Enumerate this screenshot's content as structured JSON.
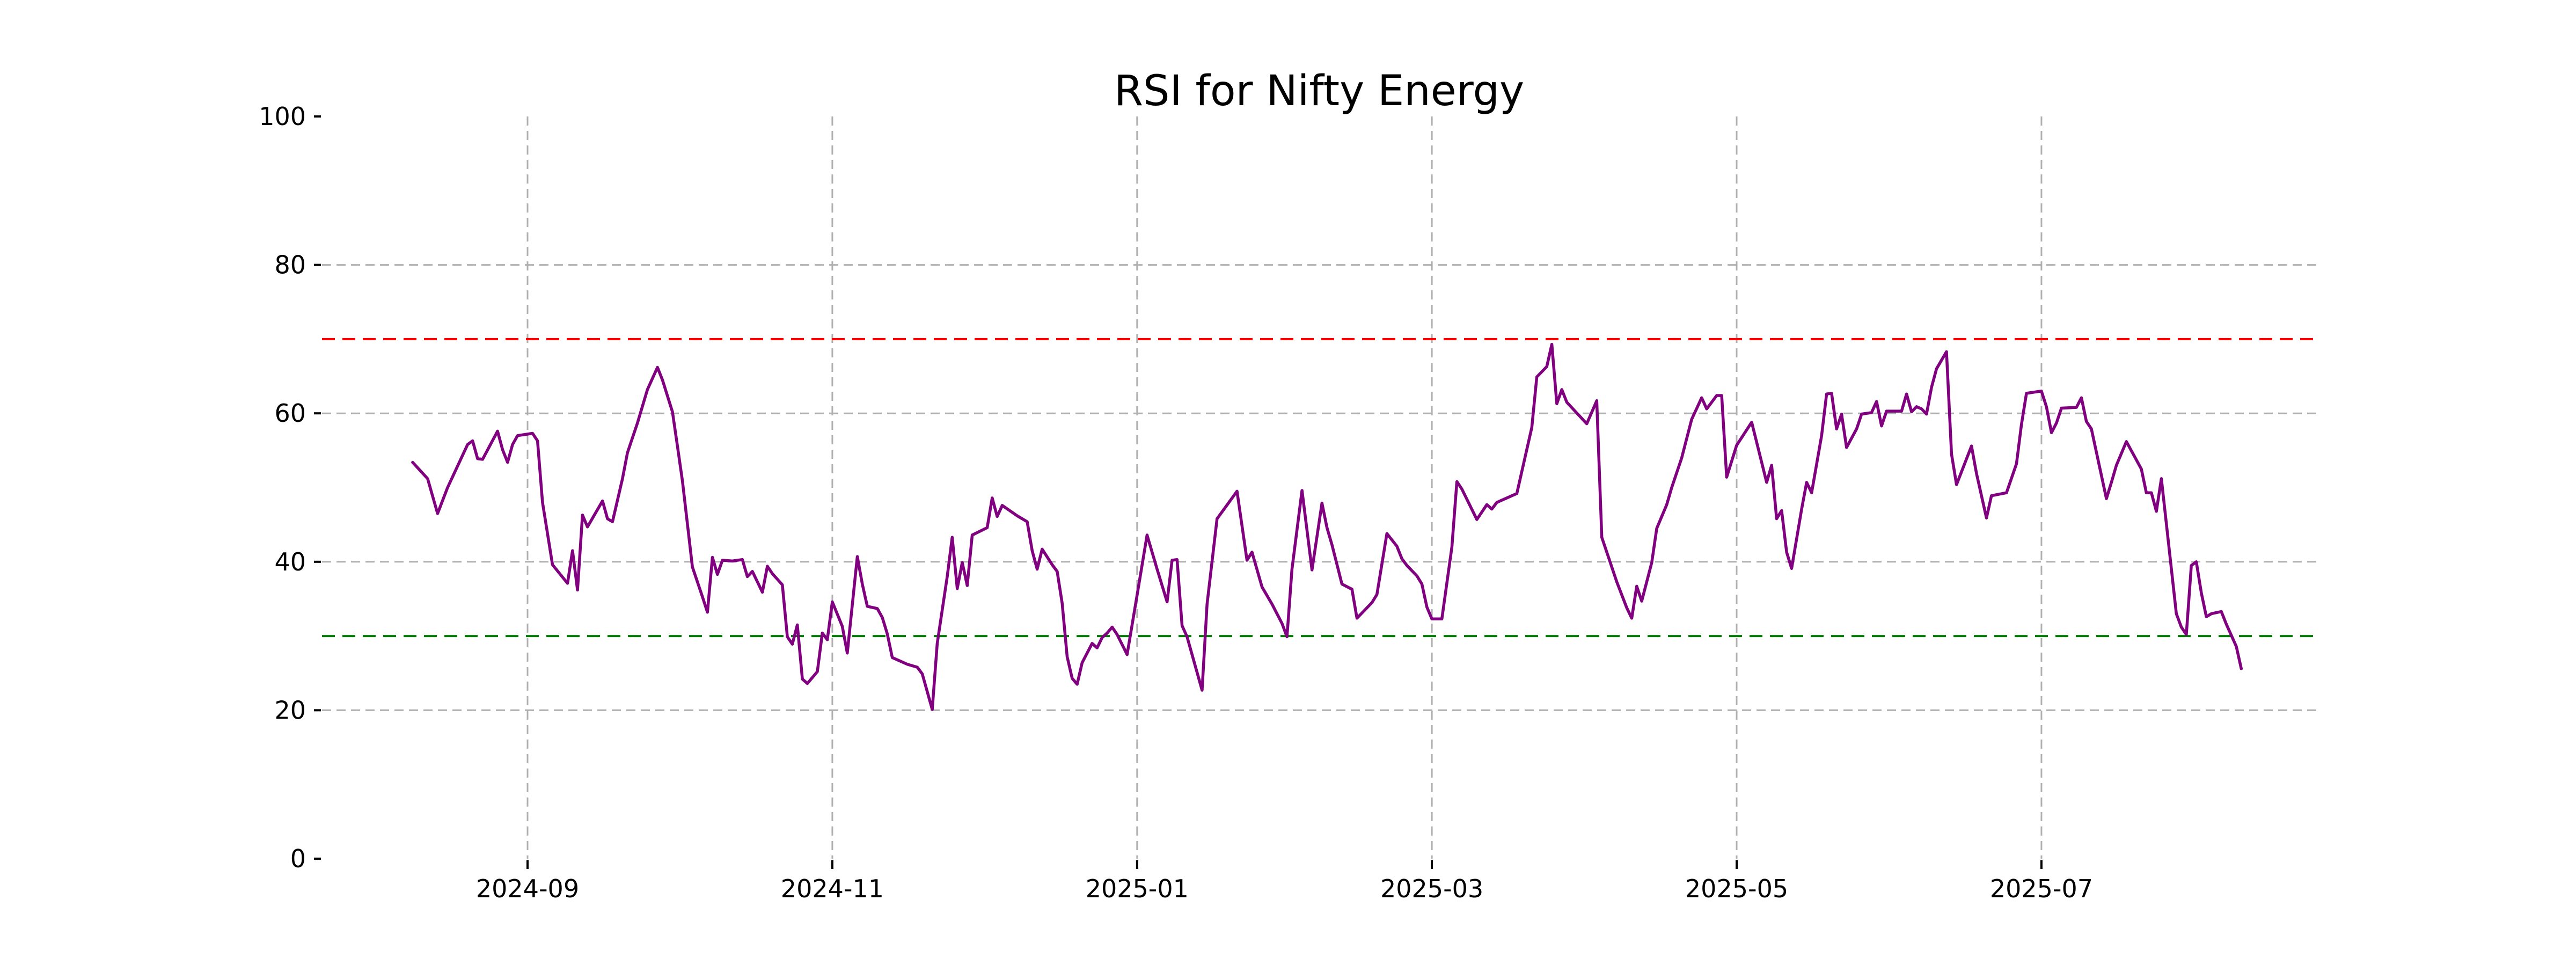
{
  "title": "RSI for Nifty Energy",
  "colors": {
    "line": "#800080",
    "overbought": "#ff0000",
    "oversold": "#008000",
    "grid": "#b0b0b0",
    "tick": "#000000",
    "background": "#ffffff"
  },
  "chart_data": {
    "type": "line",
    "title": "RSI for Nifty Energy",
    "xlabel": "",
    "ylabel": "",
    "ylim": [
      0,
      100
    ],
    "grid": true,
    "legend": "none",
    "y_ticks": [
      0,
      20,
      40,
      60,
      80,
      100
    ],
    "y_gridlines": [
      20,
      40,
      60,
      80
    ],
    "x_ticks": [
      {
        "date": "2024-09-01",
        "label": "2024-09"
      },
      {
        "date": "2024-11-01",
        "label": "2024-11"
      },
      {
        "date": "2025-01-01",
        "label": "2025-01"
      },
      {
        "date": "2025-03-01",
        "label": "2025-03"
      },
      {
        "date": "2025-05-01",
        "label": "2025-05"
      },
      {
        "date": "2025-07-01",
        "label": "2025-07"
      }
    ],
    "reference_lines": [
      {
        "name": "overbought",
        "value": 70,
        "color": "#ff0000",
        "style": "dashed"
      },
      {
        "name": "oversold",
        "value": 30,
        "color": "#008000",
        "style": "dashed"
      }
    ],
    "series": [
      {
        "name": "RSI",
        "color": "#800080",
        "points": [
          [
            "2024-08-09",
            53.4
          ],
          [
            "2024-08-12",
            51.2
          ],
          [
            "2024-08-14",
            46.5
          ],
          [
            "2024-08-16",
            50.0
          ],
          [
            "2024-08-20",
            55.8
          ],
          [
            "2024-08-21",
            56.3
          ],
          [
            "2024-08-22",
            53.9
          ],
          [
            "2024-08-23",
            53.8
          ],
          [
            "2024-08-26",
            57.6
          ],
          [
            "2024-08-27",
            55.1
          ],
          [
            "2024-08-28",
            53.4
          ],
          [
            "2024-08-29",
            55.8
          ],
          [
            "2024-08-30",
            57.0
          ],
          [
            "2024-09-02",
            57.3
          ],
          [
            "2024-09-03",
            56.3
          ],
          [
            "2024-09-04",
            48.0
          ],
          [
            "2024-09-06",
            39.6
          ],
          [
            "2024-09-09",
            37.1
          ],
          [
            "2024-09-10",
            41.5
          ],
          [
            "2024-09-11",
            36.2
          ],
          [
            "2024-09-12",
            46.3
          ],
          [
            "2024-09-13",
            44.7
          ],
          [
            "2024-09-16",
            48.2
          ],
          [
            "2024-09-17",
            45.8
          ],
          [
            "2024-09-18",
            45.4
          ],
          [
            "2024-09-20",
            51.2
          ],
          [
            "2024-09-21",
            54.7
          ],
          [
            "2024-09-23",
            58.7
          ],
          [
            "2024-09-25",
            63.2
          ],
          [
            "2024-09-27",
            66.2
          ],
          [
            "2024-09-28",
            64.5
          ],
          [
            "2024-09-30",
            60.2
          ],
          [
            "2024-10-01",
            55.6
          ],
          [
            "2024-10-02",
            50.9
          ],
          [
            "2024-10-03",
            45.1
          ],
          [
            "2024-10-04",
            39.3
          ],
          [
            "2024-10-06",
            35.3
          ],
          [
            "2024-10-07",
            33.2
          ],
          [
            "2024-10-08",
            40.6
          ],
          [
            "2024-10-09",
            38.3
          ],
          [
            "2024-10-10",
            40.2
          ],
          [
            "2024-10-12",
            40.1
          ],
          [
            "2024-10-14",
            40.3
          ],
          [
            "2024-10-15",
            38.0
          ],
          [
            "2024-10-16",
            38.7
          ],
          [
            "2024-10-18",
            35.9
          ],
          [
            "2024-10-19",
            39.4
          ],
          [
            "2024-10-20",
            38.4
          ],
          [
            "2024-10-22",
            36.9
          ],
          [
            "2024-10-23",
            29.9
          ],
          [
            "2024-10-24",
            28.9
          ],
          [
            "2024-10-25",
            31.5
          ],
          [
            "2024-10-26",
            24.2
          ],
          [
            "2024-10-27",
            23.6
          ],
          [
            "2024-10-29",
            25.2
          ],
          [
            "2024-10-30",
            30.4
          ],
          [
            "2024-10-31",
            29.5
          ],
          [
            "2024-11-01",
            34.6
          ],
          [
            "2024-11-03",
            31.3
          ],
          [
            "2024-11-04",
            27.7
          ],
          [
            "2024-11-06",
            40.7
          ],
          [
            "2024-11-07",
            37.0
          ],
          [
            "2024-11-08",
            34.0
          ],
          [
            "2024-11-10",
            33.7
          ],
          [
            "2024-11-11",
            32.5
          ],
          [
            "2024-11-12",
            30.3
          ],
          [
            "2024-11-13",
            27.1
          ],
          [
            "2024-11-16",
            26.2
          ],
          [
            "2024-11-18",
            25.8
          ],
          [
            "2024-11-19",
            24.9
          ],
          [
            "2024-11-21",
            20.1
          ],
          [
            "2024-11-22",
            29.0
          ],
          [
            "2024-11-24",
            38.0
          ],
          [
            "2024-11-25",
            43.3
          ],
          [
            "2024-11-26",
            36.4
          ],
          [
            "2024-11-27",
            39.9
          ],
          [
            "2024-11-28",
            36.8
          ],
          [
            "2024-11-29",
            43.6
          ],
          [
            "2024-12-02",
            44.6
          ],
          [
            "2024-12-03",
            48.6
          ],
          [
            "2024-12-04",
            46.1
          ],
          [
            "2024-12-05",
            47.6
          ],
          [
            "2024-12-08",
            46.2
          ],
          [
            "2024-12-10",
            45.4
          ],
          [
            "2024-12-11",
            41.5
          ],
          [
            "2024-12-12",
            39.0
          ],
          [
            "2024-12-13",
            41.7
          ],
          [
            "2024-12-15",
            39.6
          ],
          [
            "2024-12-16",
            38.7
          ],
          [
            "2024-12-17",
            34.4
          ],
          [
            "2024-12-18",
            27.2
          ],
          [
            "2024-12-19",
            24.3
          ],
          [
            "2024-12-20",
            23.5
          ],
          [
            "2024-12-21",
            26.4
          ],
          [
            "2024-12-23",
            29.0
          ],
          [
            "2024-12-24",
            28.4
          ],
          [
            "2024-12-25",
            29.8
          ],
          [
            "2024-12-26",
            30.4
          ],
          [
            "2024-12-27",
            31.2
          ],
          [
            "2024-12-28",
            30.2
          ],
          [
            "2024-12-30",
            27.5
          ],
          [
            "2025-01-01",
            35.5
          ],
          [
            "2025-01-03",
            43.6
          ],
          [
            "2025-01-05",
            39.0
          ],
          [
            "2025-01-07",
            34.6
          ],
          [
            "2025-01-08",
            40.2
          ],
          [
            "2025-01-09",
            40.3
          ],
          [
            "2025-01-10",
            31.4
          ],
          [
            "2025-01-11",
            29.9
          ],
          [
            "2025-01-14",
            22.7
          ],
          [
            "2025-01-15",
            34.3
          ],
          [
            "2025-01-17",
            45.8
          ],
          [
            "2025-01-21",
            49.5
          ],
          [
            "2025-01-23",
            40.2
          ],
          [
            "2025-01-24",
            41.3
          ],
          [
            "2025-01-26",
            36.6
          ],
          [
            "2025-01-28",
            34.3
          ],
          [
            "2025-01-30",
            31.7
          ],
          [
            "2025-01-31",
            29.9
          ],
          [
            "2025-02-01",
            39.0
          ],
          [
            "2025-02-03",
            49.6
          ],
          [
            "2025-02-05",
            38.9
          ],
          [
            "2025-02-07",
            47.9
          ],
          [
            "2025-02-08",
            44.6
          ],
          [
            "2025-02-09",
            42.3
          ],
          [
            "2025-02-11",
            37.0
          ],
          [
            "2025-02-13",
            36.3
          ],
          [
            "2025-02-14",
            32.4
          ],
          [
            "2025-02-17",
            34.5
          ],
          [
            "2025-02-18",
            35.6
          ],
          [
            "2025-02-20",
            43.8
          ],
          [
            "2025-02-22",
            42.1
          ],
          [
            "2025-02-23",
            40.4
          ],
          [
            "2025-02-24",
            39.5
          ],
          [
            "2025-02-26",
            38.1
          ],
          [
            "2025-02-27",
            37.0
          ],
          [
            "2025-02-28",
            33.9
          ],
          [
            "2025-03-01",
            32.3
          ],
          [
            "2025-03-03",
            32.3
          ],
          [
            "2025-03-05",
            42.0
          ],
          [
            "2025-03-06",
            50.8
          ],
          [
            "2025-03-07",
            49.8
          ],
          [
            "2025-03-10",
            45.7
          ],
          [
            "2025-03-12",
            47.7
          ],
          [
            "2025-03-13",
            47.1
          ],
          [
            "2025-03-14",
            48.0
          ],
          [
            "2025-03-17",
            48.9
          ],
          [
            "2025-03-18",
            49.2
          ],
          [
            "2025-03-21",
            58.1
          ],
          [
            "2025-03-22",
            64.9
          ],
          [
            "2025-03-24",
            66.3
          ],
          [
            "2025-03-25",
            69.3
          ],
          [
            "2025-03-26",
            61.3
          ],
          [
            "2025-03-27",
            63.2
          ],
          [
            "2025-03-28",
            61.5
          ],
          [
            "2025-04-01",
            58.6
          ],
          [
            "2025-04-03",
            61.7
          ],
          [
            "2025-04-04",
            43.3
          ],
          [
            "2025-04-07",
            37.3
          ],
          [
            "2025-04-09",
            33.8
          ],
          [
            "2025-04-10",
            32.4
          ],
          [
            "2025-04-11",
            36.7
          ],
          [
            "2025-04-12",
            34.7
          ],
          [
            "2025-04-14",
            39.9
          ],
          [
            "2025-04-15",
            44.5
          ],
          [
            "2025-04-17",
            47.7
          ],
          [
            "2025-04-18",
            50.0
          ],
          [
            "2025-04-20",
            54.0
          ],
          [
            "2025-04-21",
            56.6
          ],
          [
            "2025-04-22",
            59.2
          ],
          [
            "2025-04-24",
            62.1
          ],
          [
            "2025-04-25",
            60.6
          ],
          [
            "2025-04-27",
            62.4
          ],
          [
            "2025-04-28",
            62.4
          ],
          [
            "2025-04-29",
            51.4
          ],
          [
            "2025-05-01",
            55.7
          ],
          [
            "2025-05-04",
            58.8
          ],
          [
            "2025-05-07",
            50.7
          ],
          [
            "2025-05-08",
            53.0
          ],
          [
            "2025-05-09",
            45.8
          ],
          [
            "2025-05-10",
            46.9
          ],
          [
            "2025-05-11",
            41.3
          ],
          [
            "2025-05-12",
            39.1
          ],
          [
            "2025-05-14",
            47.1
          ],
          [
            "2025-05-15",
            50.7
          ],
          [
            "2025-05-16",
            49.3
          ],
          [
            "2025-05-18",
            57.0
          ],
          [
            "2025-05-19",
            62.6
          ],
          [
            "2025-05-20",
            62.7
          ],
          [
            "2025-05-21",
            57.9
          ],
          [
            "2025-05-22",
            59.9
          ],
          [
            "2025-05-23",
            55.4
          ],
          [
            "2025-05-25",
            57.9
          ],
          [
            "2025-05-26",
            59.9
          ],
          [
            "2025-05-28",
            60.1
          ],
          [
            "2025-05-29",
            61.6
          ],
          [
            "2025-05-30",
            58.3
          ],
          [
            "2025-05-31",
            60.3
          ],
          [
            "2025-06-03",
            60.3
          ],
          [
            "2025-06-04",
            62.6
          ],
          [
            "2025-06-05",
            60.2
          ],
          [
            "2025-06-06",
            60.9
          ],
          [
            "2025-06-07",
            60.6
          ],
          [
            "2025-06-08",
            59.9
          ],
          [
            "2025-06-09",
            63.5
          ],
          [
            "2025-06-10",
            66.0
          ],
          [
            "2025-06-12",
            68.3
          ],
          [
            "2025-06-13",
            54.5
          ],
          [
            "2025-06-14",
            50.4
          ],
          [
            "2025-06-17",
            55.6
          ],
          [
            "2025-06-18",
            51.9
          ],
          [
            "2025-06-20",
            45.9
          ],
          [
            "2025-06-21",
            48.9
          ],
          [
            "2025-06-24",
            49.3
          ],
          [
            "2025-06-26",
            53.2
          ],
          [
            "2025-06-27",
            58.5
          ],
          [
            "2025-06-28",
            62.7
          ],
          [
            "2025-07-01",
            63.0
          ],
          [
            "2025-07-02",
            60.9
          ],
          [
            "2025-07-03",
            57.4
          ],
          [
            "2025-07-04",
            58.7
          ],
          [
            "2025-07-05",
            60.7
          ],
          [
            "2025-07-08",
            60.8
          ],
          [
            "2025-07-09",
            62.1
          ],
          [
            "2025-07-10",
            58.9
          ],
          [
            "2025-07-11",
            57.9
          ],
          [
            "2025-07-14",
            48.5
          ],
          [
            "2025-07-15",
            50.7
          ],
          [
            "2025-07-16",
            53.0
          ],
          [
            "2025-07-18",
            56.2
          ],
          [
            "2025-07-21",
            52.5
          ],
          [
            "2025-07-22",
            49.3
          ],
          [
            "2025-07-23",
            49.3
          ],
          [
            "2025-07-24",
            46.8
          ],
          [
            "2025-07-25",
            51.2
          ],
          [
            "2025-07-28",
            33.0
          ],
          [
            "2025-07-29",
            31.2
          ],
          [
            "2025-07-30",
            30.2
          ],
          [
            "2025-07-31",
            39.5
          ],
          [
            "2025-08-01",
            40.0
          ],
          [
            "2025-08-02",
            35.8
          ],
          [
            "2025-08-03",
            32.6
          ],
          [
            "2025-08-04",
            33.0
          ],
          [
            "2025-08-06",
            33.3
          ],
          [
            "2025-08-07",
            31.6
          ],
          [
            "2025-08-09",
            28.6
          ],
          [
            "2025-08-10",
            25.6
          ]
        ]
      }
    ]
  }
}
